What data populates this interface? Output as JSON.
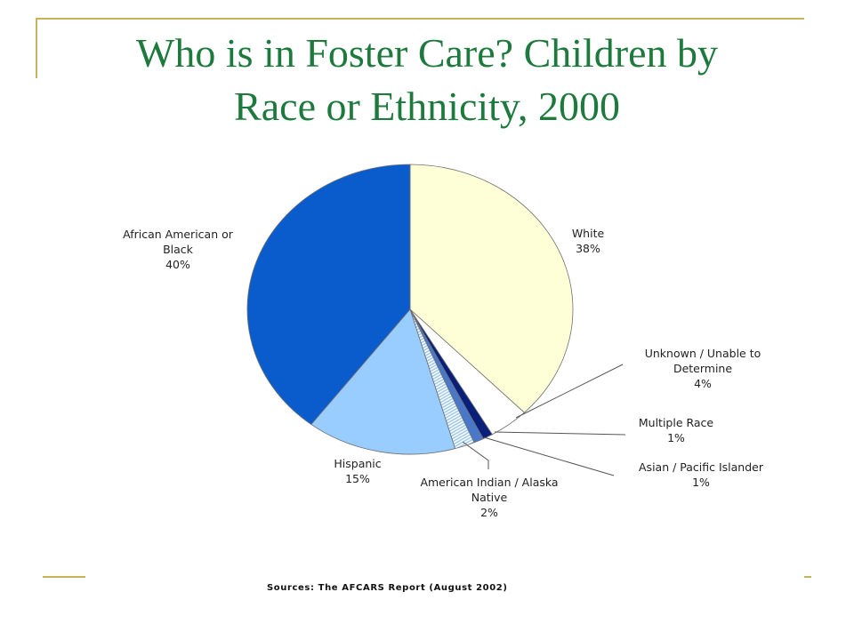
{
  "slide": {
    "title_line1": "Who is in Foster Care? Children by",
    "title_line2": "Race or Ethnicity, 2000",
    "source": "Sources: The AFCARS Report (August 2002)"
  },
  "colors": {
    "title": "#1e7a3c",
    "rules": "#c8b25a"
  },
  "chart_data": {
    "type": "pie",
    "title": "",
    "unit": "%",
    "slices": [
      {
        "key": "white",
        "label_lines": [
          "White",
          "38%"
        ],
        "value": 38,
        "color": "#ffffd7"
      },
      {
        "key": "unknown",
        "label_lines": [
          "Unknown / Unable to",
          "Determine",
          "4%"
        ],
        "value": 4,
        "color": "#ffffff"
      },
      {
        "key": "multiple",
        "label_lines": [
          "Multiple Race",
          "1%"
        ],
        "value": 1,
        "color": "#0a1f7a"
      },
      {
        "key": "asian",
        "label_lines": [
          "Asian / Pacific Islander",
          "1%"
        ],
        "value": 1,
        "color": "#4a78c8"
      },
      {
        "key": "native",
        "label_lines": [
          "American Indian / Alaska",
          "Native",
          "2%"
        ],
        "value": 2,
        "color": "#cfe4f6"
      },
      {
        "key": "hispanic",
        "label_lines": [
          "Hispanic",
          "15%"
        ],
        "value": 15,
        "color": "#99ccff"
      },
      {
        "key": "black",
        "label_lines": [
          "African American or",
          "Black",
          "40%"
        ],
        "value": 40,
        "color": "#0a5ccc"
      }
    ]
  }
}
